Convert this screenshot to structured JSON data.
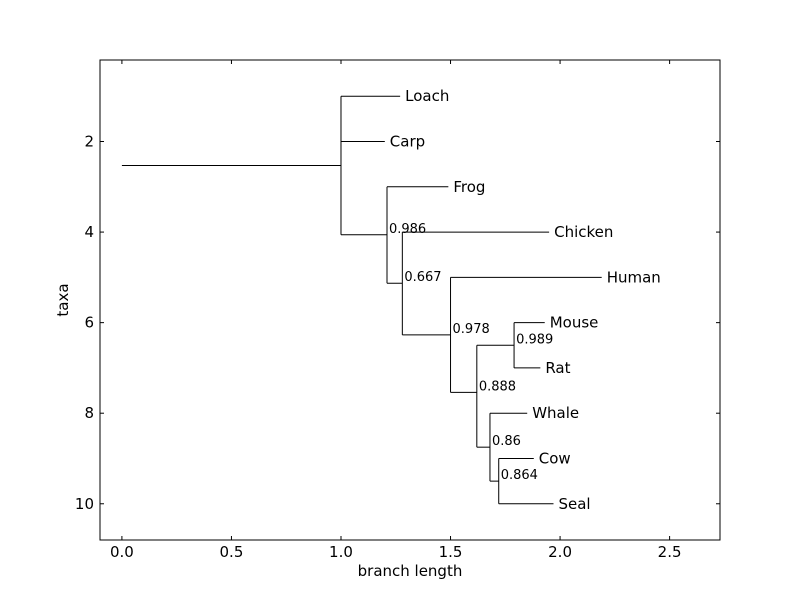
{
  "chart_data": {
    "type": "tree",
    "xlabel": "branch length",
    "ylabel": "taxa",
    "xlim": [
      -0.1,
      2.73
    ],
    "ylim": [
      10.8,
      0.2
    ],
    "xticks": [
      0.0,
      0.5,
      1.0,
      1.5,
      2.0,
      2.5
    ],
    "yticks": [
      2,
      4,
      6,
      8,
      10
    ],
    "grid": false,
    "leaves": [
      {
        "label": "Loach",
        "x": 1.27,
        "y": 1
      },
      {
        "label": "Carp",
        "x": 1.2,
        "y": 2
      },
      {
        "label": "Frog",
        "x": 1.49,
        "y": 3
      },
      {
        "label": "Chicken",
        "x": 1.95,
        "y": 4
      },
      {
        "label": "Human",
        "x": 2.19,
        "y": 5
      },
      {
        "label": "Mouse",
        "x": 1.93,
        "y": 6
      },
      {
        "label": "Rat",
        "x": 1.91,
        "y": 7
      },
      {
        "label": "Whale",
        "x": 1.85,
        "y": 8
      },
      {
        "label": "Cow",
        "x": 1.88,
        "y": 9
      },
      {
        "label": "Seal",
        "x": 1.97,
        "y": 10
      }
    ],
    "internal_nodes": [
      {
        "id": "root",
        "x": 0.0,
        "y": 2.53,
        "children": [
          "n1"
        ],
        "support": ""
      },
      {
        "id": "n1",
        "x": 1.0,
        "y": 2.53,
        "children": [
          "Loach",
          "Carp",
          "n2"
        ],
        "support": ""
      },
      {
        "id": "n2",
        "x": 1.21,
        "y": 4.06,
        "children": [
          "Frog",
          "n3"
        ],
        "support": "0.986"
      },
      {
        "id": "n3",
        "x": 1.28,
        "y": 5.13,
        "children": [
          "Chicken",
          "n4"
        ],
        "support": "0.667"
      },
      {
        "id": "n4",
        "x": 1.5,
        "y": 6.27,
        "children": [
          "Human",
          "n5"
        ],
        "support": "0.978"
      },
      {
        "id": "n5",
        "x": 1.62,
        "y": 7.54,
        "children": [
          "n6",
          "n7"
        ],
        "support": "0.888"
      },
      {
        "id": "n6",
        "x": 1.79,
        "y": 6.5,
        "children": [
          "Mouse",
          "Rat"
        ],
        "support": "0.989"
      },
      {
        "id": "n7",
        "x": 1.68,
        "y": 8.75,
        "children": [
          "Whale",
          "n8"
        ],
        "support": "0.86"
      },
      {
        "id": "n8",
        "x": 1.72,
        "y": 9.5,
        "children": [
          "Cow",
          "Seal"
        ],
        "support": "0.864"
      }
    ]
  }
}
